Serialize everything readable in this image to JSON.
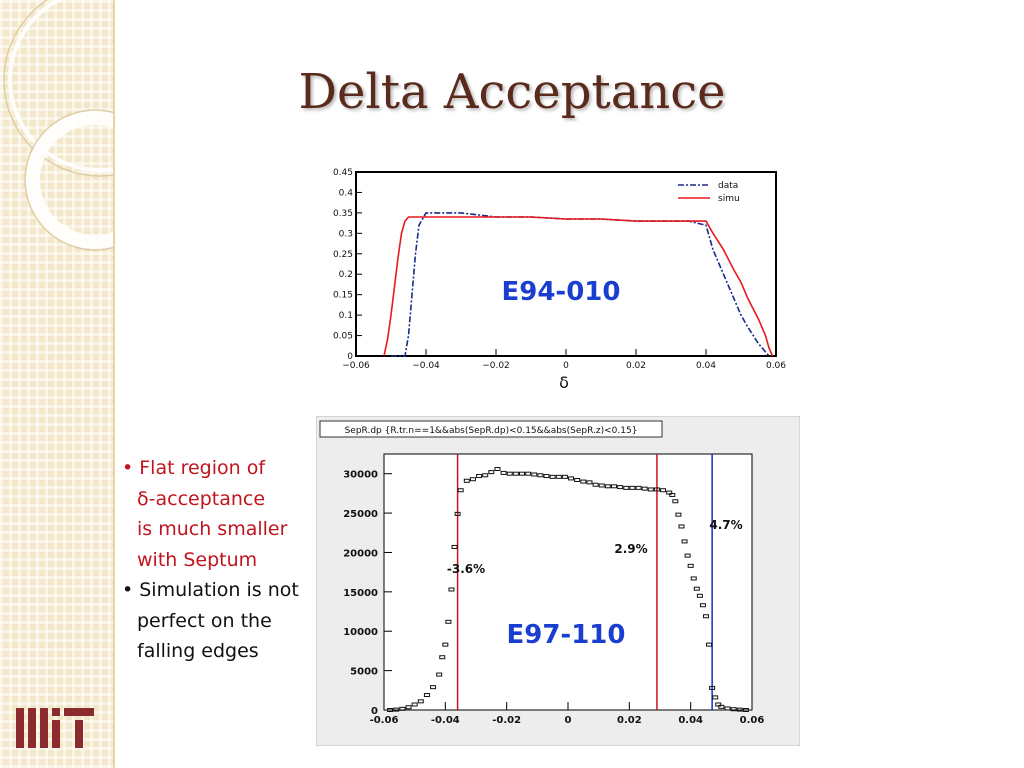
{
  "slide": {
    "title": "Delta Acceptance",
    "logo_text": "MIT"
  },
  "bullets": [
    {
      "lines": [
        "• Flat region of",
        "δ-acceptance",
        "is much smaller",
        "with Septum"
      ],
      "color": "#c0141e"
    },
    {
      "lines": [
        "• Simulation is not",
        "perfect on the",
        "falling edges"
      ],
      "color": "#111111"
    }
  ],
  "chart_data": [
    {
      "type": "line",
      "label": "E94-010",
      "xlabel": "δ",
      "xlim": [
        -0.06,
        0.06
      ],
      "ylim": [
        0,
        0.45
      ],
      "x_ticks": [
        "−0.06",
        "−0.04",
        "−0.02",
        "0",
        "0.02",
        "0.04",
        "0.06"
      ],
      "y_ticks": [
        "0",
        "0.05",
        "0.1",
        "0.15",
        "0.2",
        "0.25",
        "0.3",
        "0.35",
        "0.4",
        "0.45"
      ],
      "legend_position": "top-right",
      "series": [
        {
          "name": "data",
          "color": "#1a2a8a",
          "x": [
            -0.05,
            -0.046,
            -0.045,
            -0.044,
            -0.043,
            -0.042,
            -0.04,
            -0.03,
            -0.02,
            -0.01,
            0.0,
            0.01,
            0.02,
            0.03,
            0.035,
            0.04,
            0.042,
            0.045,
            0.048,
            0.05,
            0.052,
            0.055,
            0.057,
            0.058
          ],
          "y": [
            0.0,
            0.0,
            0.05,
            0.15,
            0.25,
            0.32,
            0.35,
            0.35,
            0.34,
            0.34,
            0.335,
            0.335,
            0.33,
            0.33,
            0.33,
            0.32,
            0.26,
            0.2,
            0.14,
            0.1,
            0.07,
            0.03,
            0.01,
            0.0
          ]
        },
        {
          "name": "simu",
          "color": "#e8191e",
          "x": [
            -0.052,
            -0.051,
            -0.05,
            -0.049,
            -0.048,
            -0.047,
            -0.046,
            -0.045,
            -0.04,
            -0.03,
            -0.02,
            -0.01,
            0.0,
            0.01,
            0.02,
            0.03,
            0.04,
            0.042,
            0.045,
            0.048,
            0.05,
            0.052,
            0.055,
            0.057,
            0.058,
            0.059
          ],
          "y": [
            0.0,
            0.04,
            0.1,
            0.17,
            0.24,
            0.3,
            0.33,
            0.34,
            0.34,
            0.34,
            0.34,
            0.34,
            0.335,
            0.335,
            0.33,
            0.33,
            0.33,
            0.3,
            0.26,
            0.21,
            0.18,
            0.14,
            0.09,
            0.05,
            0.02,
            0.0
          ]
        }
      ]
    },
    {
      "type": "scatter",
      "label": "E97-110",
      "stats_title": "SepR.dp {R.tr.n==1&&abs(SepR.dp)<0.15&&abs(SepR.z)<0.15}",
      "xlim": [
        -0.06,
        0.06
      ],
      "ylim": [
        0,
        32500
      ],
      "x_ticks": [
        "-0.06",
        "-0.04",
        "-0.02",
        "0",
        "0.02",
        "0.04",
        "0.06"
      ],
      "y_ticks": [
        "0",
        "5000",
        "10000",
        "15000",
        "20000",
        "25000",
        "30000"
      ],
      "series": [
        {
          "name": "",
          "color": "#111111",
          "x": [
            -0.058,
            -0.056,
            -0.054,
            -0.052,
            -0.05,
            -0.048,
            -0.046,
            -0.044,
            -0.042,
            -0.041,
            -0.04,
            -0.039,
            -0.038,
            -0.037,
            -0.036,
            -0.035,
            -0.033,
            -0.031,
            -0.029,
            -0.027,
            -0.025,
            -0.023,
            -0.021,
            -0.019,
            -0.017,
            -0.015,
            -0.013,
            -0.011,
            -0.009,
            -0.007,
            -0.005,
            -0.003,
            -0.001,
            0.001,
            0.003,
            0.005,
            0.007,
            0.009,
            0.011,
            0.013,
            0.015,
            0.017,
            0.019,
            0.021,
            0.023,
            0.025,
            0.027,
            0.029,
            0.031,
            0.033,
            0.034,
            0.035,
            0.036,
            0.037,
            0.038,
            0.039,
            0.04,
            0.041,
            0.042,
            0.043,
            0.044,
            0.045,
            0.046,
            0.047,
            0.048,
            0.049,
            0.05,
            0.052,
            0.054,
            0.056,
            0.058
          ],
          "y": [
            0,
            50,
            150,
            350,
            700,
            1100,
            1900,
            2900,
            4500,
            6700,
            8300,
            11200,
            15300,
            20700,
            24900,
            27900,
            29100,
            29300,
            29700,
            29800,
            30200,
            30600,
            30100,
            30000,
            30000,
            30000,
            30000,
            29900,
            29800,
            29700,
            29600,
            29600,
            29600,
            29400,
            29200,
            29000,
            28900,
            28600,
            28500,
            28400,
            28400,
            28300,
            28200,
            28200,
            28200,
            28100,
            28000,
            28000,
            27900,
            27600,
            27300,
            26500,
            24800,
            23300,
            21400,
            19600,
            18300,
            16700,
            15400,
            14500,
            13300,
            11900,
            8300,
            2800,
            1600,
            700,
            400,
            200,
            100,
            50,
            0
          ]
        }
      ],
      "vlines": [
        {
          "x": -0.036,
          "color": "#d0121a",
          "label": "-3.6%"
        },
        {
          "x": 0.029,
          "color": "#d0121a",
          "label": "2.9%"
        },
        {
          "x": 0.047,
          "color": "#1c2cc8",
          "label": "4.7%"
        }
      ]
    }
  ]
}
